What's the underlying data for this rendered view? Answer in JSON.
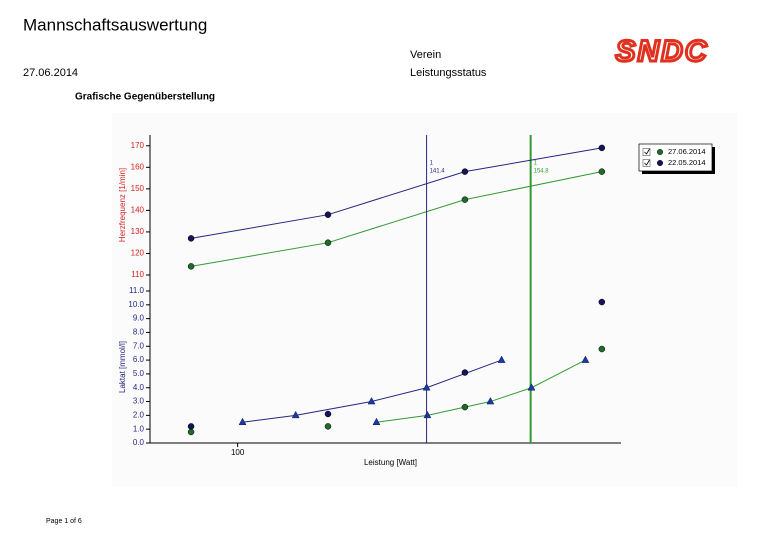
{
  "header": {
    "title": "Mannschaftsauswertung",
    "club_label": "Verein",
    "date": "27.06.2014",
    "report": "Leistungsstatus",
    "logo": "SNDC"
  },
  "section_title": "Grafische Gegenüberstellung",
  "chart_data": {
    "type": "line",
    "y2_label": "Herzfrequenz [1/min]",
    "y_label": "Laktat [mmol/l]",
    "x_label": "Leistung [Watt]",
    "xlim": [
      68,
      240
    ],
    "xticks": [
      100
    ],
    "ylim": [
      0,
      11
    ],
    "yticks": [
      {
        "value": 0,
        "label": "0.0"
      },
      {
        "value": 1,
        "label": "1.0"
      },
      {
        "value": 2,
        "label": "2.0"
      },
      {
        "value": 3,
        "label": "3.0"
      },
      {
        "value": 4,
        "label": "4.0"
      },
      {
        "value": 5,
        "label": "5.0"
      },
      {
        "value": 6,
        "label": "6.0"
      },
      {
        "value": 7,
        "label": "7.0"
      },
      {
        "value": 8,
        "label": "8.0"
      },
      {
        "value": 9,
        "label": "9.0"
      },
      {
        "value": 10,
        "label": "10.0"
      },
      {
        "value": 11,
        "label": "11.0"
      }
    ],
    "y2lim": [
      110,
      175
    ],
    "y2ticks": [
      110,
      120,
      130,
      140,
      150,
      160,
      170
    ],
    "series": [
      {
        "name": "27.06.2014",
        "color": "#339933",
        "marker_color": "#1f6b2a",
        "x": [
          83,
          133,
          183,
          233
        ],
        "hr": [
          114,
          125,
          145,
          158
        ],
        "lactate": [
          0.8,
          1.2,
          2.6,
          6.8
        ],
        "steps_x": [
          150.7,
          169.3,
          192.3,
          207.3,
          227
        ],
        "steps_lactate": [
          1.5,
          2.0,
          3.0,
          4.0,
          6.0
        ],
        "threshold_x": 207,
        "threshold_marker": "1",
        "threshold_label": "154.8"
      },
      {
        "name": "22.05.2014",
        "color": "#262680",
        "marker_color": "#14145a",
        "x": [
          83,
          133,
          183,
          233
        ],
        "hr": [
          127,
          138,
          158,
          169
        ],
        "lactate": [
          1.2,
          2.1,
          5.1,
          10.2
        ],
        "steps_x": [
          101.8,
          121.2,
          148.9,
          169,
          196.4
        ],
        "steps_lactate": [
          1.5,
          2.0,
          3.0,
          4.0,
          6.0
        ],
        "threshold_x": 169,
        "threshold_marker": "1",
        "threshold_label": "141.4"
      }
    ]
  },
  "footer": "Page 1 of 6"
}
